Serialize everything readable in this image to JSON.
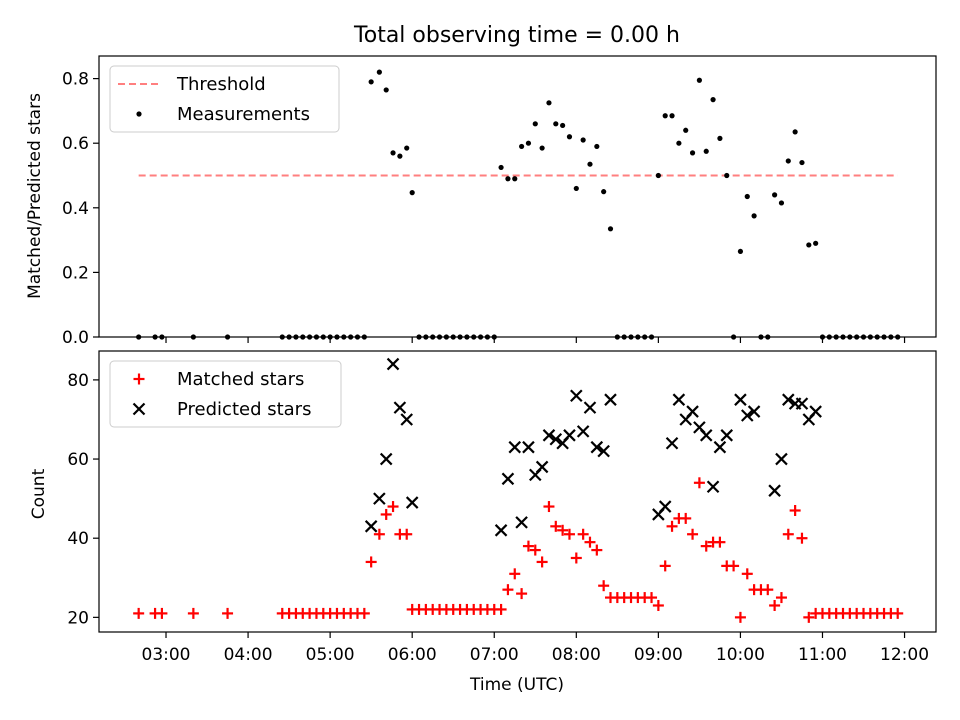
{
  "chart_data": [
    {
      "type": "scatter",
      "title": "Total observing time = 0.00 h",
      "ylabel": "Matched/Predicted stars",
      "xlabel": "",
      "xlim": [
        "02:11",
        "12:23"
      ],
      "ylim": [
        0,
        0.87
      ],
      "yticks": [
        "0.0",
        "0.2",
        "0.4",
        "0.6",
        "0.8"
      ],
      "legend_position": "top-left",
      "threshold": {
        "name": "Threshold",
        "value": 0.5,
        "x_start": "02:40",
        "x_end": "11:55",
        "color": "#ff7f7f"
      },
      "series": [
        {
          "name": "Measurements",
          "color": "#000000",
          "points": [
            [
              "02:40",
              0
            ],
            [
              "02:52",
              0
            ],
            [
              "02:57",
              0
            ],
            [
              "03:20",
              0
            ],
            [
              "03:45",
              0
            ],
            [
              "04:25",
              0
            ],
            [
              "04:30",
              0
            ],
            [
              "04:35",
              0
            ],
            [
              "04:40",
              0
            ],
            [
              "04:45",
              0
            ],
            [
              "04:50",
              0
            ],
            [
              "04:55",
              0
            ],
            [
              "05:00",
              0
            ],
            [
              "05:05",
              0
            ],
            [
              "05:10",
              0
            ],
            [
              "05:15",
              0
            ],
            [
              "05:20",
              0
            ],
            [
              "05:25",
              0
            ],
            [
              "05:30",
              0.79
            ],
            [
              "05:36",
              0.82
            ],
            [
              "05:41",
              0.765
            ],
            [
              "05:46",
              0.57
            ],
            [
              "05:51",
              0.56
            ],
            [
              "05:56",
              0.585
            ],
            [
              "06:00",
              0.447
            ],
            [
              "06:05",
              0
            ],
            [
              "06:10",
              0
            ],
            [
              "06:15",
              0
            ],
            [
              "06:20",
              0
            ],
            [
              "06:25",
              0
            ],
            [
              "06:30",
              0
            ],
            [
              "06:35",
              0
            ],
            [
              "06:40",
              0
            ],
            [
              "06:45",
              0
            ],
            [
              "06:50",
              0
            ],
            [
              "06:55",
              0
            ],
            [
              "07:00",
              0
            ],
            [
              "07:05",
              0.525
            ],
            [
              "07:10",
              0.49
            ],
            [
              "07:15",
              0.49
            ],
            [
              "07:20",
              0.59
            ],
            [
              "07:25",
              0.6
            ],
            [
              "07:30",
              0.66
            ],
            [
              "07:35",
              0.585
            ],
            [
              "07:40",
              0.725
            ],
            [
              "07:45",
              0.66
            ],
            [
              "07:50",
              0.655
            ],
            [
              "07:55",
              0.62
            ],
            [
              "08:00",
              0.46
            ],
            [
              "08:05",
              0.61
            ],
            [
              "08:10",
              0.535
            ],
            [
              "08:15",
              0.59
            ],
            [
              "08:20",
              0.45
            ],
            [
              "08:25",
              0.335
            ],
            [
              "08:30",
              0
            ],
            [
              "08:35",
              0
            ],
            [
              "08:40",
              0
            ],
            [
              "08:45",
              0
            ],
            [
              "08:50",
              0
            ],
            [
              "08:55",
              0
            ],
            [
              "09:00",
              0.5
            ],
            [
              "09:05",
              0.685
            ],
            [
              "09:10",
              0.685
            ],
            [
              "09:15",
              0.6
            ],
            [
              "09:20",
              0.64
            ],
            [
              "09:25",
              0.57
            ],
            [
              "09:30",
              0.795
            ],
            [
              "09:35",
              0.575
            ],
            [
              "09:40",
              0.735
            ],
            [
              "09:45",
              0.615
            ],
            [
              "09:50",
              0.5
            ],
            [
              "09:55",
              0
            ],
            [
              "10:00",
              0.265
            ],
            [
              "10:05",
              0.435
            ],
            [
              "10:10",
              0.375
            ],
            [
              "10:15",
              0
            ],
            [
              "10:20",
              0
            ],
            [
              "10:25",
              0.44
            ],
            [
              "10:30",
              0.415
            ],
            [
              "10:35",
              0.545
            ],
            [
              "10:40",
              0.635
            ],
            [
              "10:45",
              0.54
            ],
            [
              "10:50",
              0.285
            ],
            [
              "10:55",
              0.29
            ],
            [
              "11:00",
              0
            ],
            [
              "11:05",
              0
            ],
            [
              "11:10",
              0
            ],
            [
              "11:15",
              0
            ],
            [
              "11:20",
              0
            ],
            [
              "11:25",
              0
            ],
            [
              "11:30",
              0
            ],
            [
              "11:35",
              0
            ],
            [
              "11:40",
              0
            ],
            [
              "11:45",
              0
            ],
            [
              "11:50",
              0
            ],
            [
              "11:55",
              0
            ]
          ]
        }
      ]
    },
    {
      "type": "scatter",
      "title": "",
      "xlabel": "Time (UTC)",
      "ylabel": "Count",
      "xlim": [
        "02:11",
        "12:23"
      ],
      "ylim": [
        16.3,
        87.3
      ],
      "yticks": [
        "20",
        "40",
        "60",
        "80"
      ],
      "xticks": [
        "03:00",
        "04:00",
        "05:00",
        "06:00",
        "07:00",
        "08:00",
        "09:00",
        "10:00",
        "11:00",
        "12:00"
      ],
      "legend_position": "top-left",
      "series": [
        {
          "name": "Matched stars",
          "marker": "plus",
          "color": "#ff0000",
          "points": [
            [
              "02:40",
              21
            ],
            [
              "02:52",
              21
            ],
            [
              "02:57",
              21
            ],
            [
              "03:20",
              21
            ],
            [
              "03:45",
              21
            ],
            [
              "04:25",
              21
            ],
            [
              "04:30",
              21
            ],
            [
              "04:35",
              21
            ],
            [
              "04:40",
              21
            ],
            [
              "04:45",
              21
            ],
            [
              "04:50",
              21
            ],
            [
              "04:55",
              21
            ],
            [
              "05:00",
              21
            ],
            [
              "05:05",
              21
            ],
            [
              "05:10",
              21
            ],
            [
              "05:15",
              21
            ],
            [
              "05:20",
              21
            ],
            [
              "05:25",
              21
            ],
            [
              "05:30",
              34
            ],
            [
              "05:36",
              41
            ],
            [
              "05:41",
              46
            ],
            [
              "05:46",
              48
            ],
            [
              "05:51",
              41
            ],
            [
              "05:56",
              41
            ],
            [
              "06:00",
              22
            ],
            [
              "06:05",
              22
            ],
            [
              "06:10",
              22
            ],
            [
              "06:15",
              22
            ],
            [
              "06:20",
              22
            ],
            [
              "06:25",
              22
            ],
            [
              "06:30",
              22
            ],
            [
              "06:35",
              22
            ],
            [
              "06:40",
              22
            ],
            [
              "06:45",
              22
            ],
            [
              "06:50",
              22
            ],
            [
              "06:55",
              22
            ],
            [
              "07:00",
              22
            ],
            [
              "07:05",
              22
            ],
            [
              "07:10",
              27
            ],
            [
              "07:15",
              31
            ],
            [
              "07:20",
              26
            ],
            [
              "07:25",
              38
            ],
            [
              "07:30",
              37
            ],
            [
              "07:35",
              34
            ],
            [
              "07:40",
              48
            ],
            [
              "07:45",
              43
            ],
            [
              "07:50",
              42
            ],
            [
              "07:55",
              41
            ],
            [
              "08:00",
              35
            ],
            [
              "08:05",
              41
            ],
            [
              "08:10",
              39
            ],
            [
              "08:15",
              37
            ],
            [
              "08:20",
              28
            ],
            [
              "08:25",
              25
            ],
            [
              "08:30",
              25
            ],
            [
              "08:35",
              25
            ],
            [
              "08:40",
              25
            ],
            [
              "08:45",
              25
            ],
            [
              "08:50",
              25
            ],
            [
              "08:55",
              25
            ],
            [
              "09:00",
              23
            ],
            [
              "09:05",
              33
            ],
            [
              "09:10",
              43
            ],
            [
              "09:15",
              45
            ],
            [
              "09:20",
              45
            ],
            [
              "09:25",
              41
            ],
            [
              "09:30",
              54
            ],
            [
              "09:35",
              38
            ],
            [
              "09:40",
              39
            ],
            [
              "09:45",
              39
            ],
            [
              "09:50",
              33
            ],
            [
              "09:55",
              33
            ],
            [
              "10:00",
              20
            ],
            [
              "10:05",
              31
            ],
            [
              "10:10",
              27
            ],
            [
              "10:15",
              27
            ],
            [
              "10:20",
              27
            ],
            [
              "10:25",
              23
            ],
            [
              "10:30",
              25
            ],
            [
              "10:35",
              41
            ],
            [
              "10:40",
              47
            ],
            [
              "10:45",
              40
            ],
            [
              "10:50",
              20
            ],
            [
              "10:55",
              21
            ],
            [
              "11:00",
              21
            ],
            [
              "11:05",
              21
            ],
            [
              "11:10",
              21
            ],
            [
              "11:15",
              21
            ],
            [
              "11:20",
              21
            ],
            [
              "11:25",
              21
            ],
            [
              "11:30",
              21
            ],
            [
              "11:35",
              21
            ],
            [
              "11:40",
              21
            ],
            [
              "11:45",
              21
            ],
            [
              "11:50",
              21
            ],
            [
              "11:55",
              21
            ]
          ]
        },
        {
          "name": "Predicted stars",
          "marker": "x",
          "color": "#000000",
          "points": [
            [
              "05:30",
              43
            ],
            [
              "05:36",
              50
            ],
            [
              "05:41",
              60
            ],
            [
              "05:46",
              84
            ],
            [
              "05:51",
              73
            ],
            [
              "05:56",
              70
            ],
            [
              "06:00",
              49
            ],
            [
              "07:05",
              42
            ],
            [
              "07:10",
              55
            ],
            [
              "07:15",
              63
            ],
            [
              "07:20",
              44
            ],
            [
              "07:25",
              63
            ],
            [
              "07:30",
              56
            ],
            [
              "07:35",
              58
            ],
            [
              "07:40",
              66
            ],
            [
              "07:45",
              65
            ],
            [
              "07:50",
              64
            ],
            [
              "07:55",
              66
            ],
            [
              "08:00",
              76
            ],
            [
              "08:05",
              67
            ],
            [
              "08:10",
              73
            ],
            [
              "08:15",
              63
            ],
            [
              "08:20",
              62
            ],
            [
              "08:25",
              75
            ],
            [
              "09:00",
              46
            ],
            [
              "09:05",
              48
            ],
            [
              "09:10",
              64
            ],
            [
              "09:15",
              75
            ],
            [
              "09:20",
              70
            ],
            [
              "09:25",
              72
            ],
            [
              "09:30",
              68
            ],
            [
              "09:35",
              66
            ],
            [
              "09:40",
              53
            ],
            [
              "09:45",
              63
            ],
            [
              "09:50",
              66
            ],
            [
              "10:00",
              75
            ],
            [
              "10:05",
              71
            ],
            [
              "10:10",
              72
            ],
            [
              "10:25",
              52
            ],
            [
              "10:30",
              60
            ],
            [
              "10:35",
              75
            ],
            [
              "10:40",
              74
            ],
            [
              "10:45",
              74
            ],
            [
              "10:50",
              70
            ],
            [
              "10:55",
              72
            ]
          ]
        }
      ]
    }
  ]
}
